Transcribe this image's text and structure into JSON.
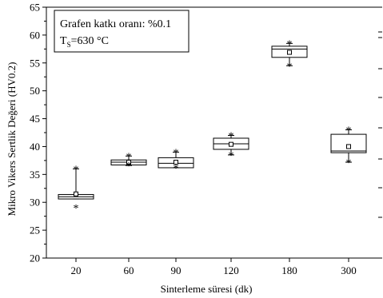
{
  "chart_data": {
    "type": "box",
    "title": "",
    "xlabel": "Sinterleme süresi (dk)",
    "ylabel": "Mikro Vikers Sertlik Değeri (HV0.2)",
    "ylim": [
      20,
      65
    ],
    "yticks": [
      20,
      25,
      30,
      35,
      40,
      45,
      50,
      55,
      60,
      65
    ],
    "categories": [
      "20",
      "60",
      "90",
      "120",
      "180",
      "300"
    ],
    "annotation": {
      "line1": "Grafen katkı oranı: %0.1",
      "line2_main": "T",
      "line2_sub": "S",
      "line2_rest": "=630 °C"
    },
    "grid": false,
    "legend": "none",
    "boxes": [
      {
        "category": "20",
        "q1": 30.6,
        "median": 31.0,
        "q3": 31.4,
        "mean": 31.5,
        "whisker_low": 30.6,
        "whisker_high": 36.0,
        "min": 29.0,
        "max": 36.0
      },
      {
        "category": "60",
        "q1": 36.7,
        "median": 37.2,
        "q3": 37.6,
        "mean": 37.2,
        "whisker_low": 36.6,
        "whisker_high": 38.3,
        "min": 36.6,
        "max": 38.3
      },
      {
        "category": "90",
        "q1": 36.2,
        "median": 37.0,
        "q3": 38.0,
        "mean": 37.2,
        "whisker_low": 36.2,
        "whisker_high": 39.0,
        "min": 36.2,
        "max": 39.0
      },
      {
        "category": "120",
        "q1": 39.5,
        "median": 40.5,
        "q3": 41.5,
        "mean": 40.4,
        "whisker_low": 38.5,
        "whisker_high": 42.0,
        "min": 38.5,
        "max": 42.0
      },
      {
        "category": "180",
        "q1": 56.0,
        "median": 57.5,
        "q3": 58.0,
        "mean": 56.9,
        "whisker_low": 54.5,
        "whisker_high": 58.5,
        "min": 54.5,
        "max": 58.5
      },
      {
        "category": "300",
        "q1": 38.9,
        "median": 39.2,
        "q3": 42.2,
        "mean": 40.0,
        "whisker_low": 37.2,
        "whisker_high": 43.0,
        "min": 37.2,
        "max": 43.0
      }
    ]
  }
}
